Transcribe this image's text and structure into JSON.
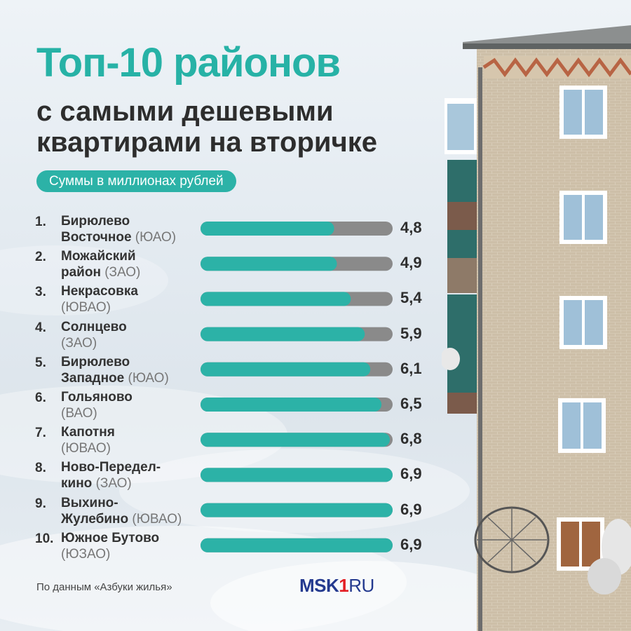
{
  "header": {
    "title": "Топ-10 районов",
    "subtitle_line1": "с самыми дешевыми",
    "subtitle_line2": "квартирами на вторичке",
    "note": "Суммы в миллионах рублей"
  },
  "footer": {
    "source": "По данным «Азбуки жилья»",
    "logo_part1": "MSK",
    "logo_part2": "1",
    "logo_part3": "RU"
  },
  "colors": {
    "accent": "#2cb2a7",
    "bar_track": "#8a8a8a",
    "text": "#2d2d2d"
  },
  "chart_data": {
    "type": "bar",
    "orientation": "horizontal",
    "title": "Топ-10 районов",
    "subtitle": "с самыми дешевыми квартирами на вторичке",
    "unit_note": "Суммы в миллионах рублей",
    "xlim": [
      0,
      6.9
    ],
    "grid": false,
    "items": [
      {
        "rank": "1.",
        "name1": "Бирюлево",
        "name2": "Восточное",
        "okrug": "(ЮАО)",
        "value": 4.8,
        "label": "4,8"
      },
      {
        "rank": "2.",
        "name1": "Можайский",
        "name2": "район",
        "okrug": "(ЗАО)",
        "value": 4.9,
        "label": "4,9"
      },
      {
        "rank": "3.",
        "name1": "Некрасовка",
        "name2": "",
        "okrug": "(ЮВАО)",
        "value": 5.4,
        "label": "5,4"
      },
      {
        "rank": "4.",
        "name1": "Солнцево",
        "name2": "",
        "okrug": "(ЗАО)",
        "value": 5.9,
        "label": "5,9"
      },
      {
        "rank": "5.",
        "name1": "Бирюлево",
        "name2": "Западное",
        "okrug": "(ЮАО)",
        "value": 6.1,
        "label": "6,1"
      },
      {
        "rank": "6.",
        "name1": "Гольяново",
        "name2": "",
        "okrug": "(ВАО)",
        "value": 6.5,
        "label": "6,5"
      },
      {
        "rank": "7.",
        "name1": "Капотня",
        "name2": "",
        "okrug": "(ЮВАО)",
        "value": 6.8,
        "label": "6,8"
      },
      {
        "rank": "8.",
        "name1": "Ново-Передел-",
        "name2": "кино",
        "okrug": "(ЗАО)",
        "value": 6.9,
        "label": "6,9"
      },
      {
        "rank": "9.",
        "name1": "Выхино-",
        "name2": "Жулебино",
        "okrug": "(ЮВАО)",
        "value": 6.9,
        "label": "6,9"
      },
      {
        "rank": "10.",
        "name1": "Южное Бутово",
        "name2": "",
        "okrug": "(ЮЗАО)",
        "value": 6.9,
        "label": "6,9"
      }
    ]
  }
}
